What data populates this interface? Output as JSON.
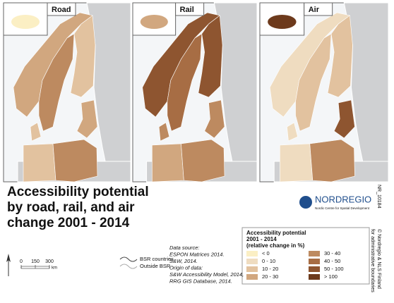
{
  "panels": [
    {
      "label": "Road"
    },
    {
      "label": "Rail"
    },
    {
      "label": "Air"
    }
  ],
  "title": [
    "Accessibility potential",
    "by road, rail, and air",
    "change 2001 - 2014"
  ],
  "logo": {
    "name": "NORDREGIO",
    "tagline": "Nordic Centre for Spatial Development"
  },
  "map_id": "NR_10184",
  "copyright": [
    "© Nordregio & NLS Finland",
    "for administrative boundaries"
  ],
  "legend": {
    "title": [
      "Accessibility potential",
      "2001 - 2014",
      "(relative change in %)"
    ],
    "items": [
      {
        "label": "< 0",
        "color": "#fbefc4"
      },
      {
        "label": "0 - 10",
        "color": "#efdcc0"
      },
      {
        "label": "10 - 20",
        "color": "#e2c29f"
      },
      {
        "label": "20 - 30",
        "color": "#d1a77f"
      },
      {
        "label": "30 - 40",
        "color": "#bd8a60"
      },
      {
        "label": "40 - 50",
        "color": "#a76d44"
      },
      {
        "label": "50 - 100",
        "color": "#8e5530"
      },
      {
        "label": "> 100",
        "color": "#6d3a1c"
      }
    ]
  },
  "source": [
    "Data source:",
    "ESPON Matrices 2014.",
    "S&W, 2014.",
    "Origin of data:",
    "S&W Accessibility Model, 2014,",
    "RRG GIS Database, 2014."
  ],
  "scale": {
    "ticks": [
      0,
      150,
      300
    ],
    "unit": "km"
  },
  "boundaries": [
    "BSR countries",
    "Outside BSR"
  ]
}
